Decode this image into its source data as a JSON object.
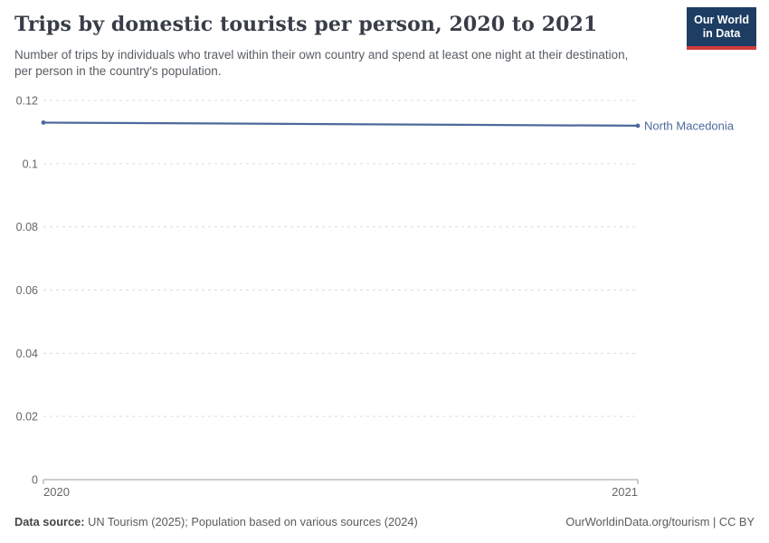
{
  "header": {
    "title": "Trips by domestic tourists per person, 2020 to 2021",
    "subtitle": "Number of trips by individuals who travel within their own country and spend at least one night at their destination, per person in the country's population.",
    "logo": {
      "line1": "Our World",
      "line2": "in Data",
      "bg_color": "#1d3d63",
      "accent_color": "#d13c3c"
    }
  },
  "chart_data": {
    "type": "line",
    "title": "Trips by domestic tourists per person, 2020 to 2021",
    "x": [
      2020,
      2021
    ],
    "xtick_labels": [
      "2020",
      "2021"
    ],
    "series": [
      {
        "name": "North Macedonia",
        "values": [
          0.113,
          0.112
        ],
        "color": "#4c6a9c"
      }
    ],
    "ylim": [
      0,
      0.12
    ],
    "yticks": [
      0,
      0.02,
      0.04,
      0.06,
      0.08,
      0.1,
      0.12
    ],
    "ytick_labels": [
      "0",
      "0.02",
      "0.04",
      "0.06",
      "0.08",
      "0.1",
      "0.12"
    ],
    "grid": "horizontal-dashed",
    "grid_color": "#dcdcdc",
    "axis_color": "#9e9e9e",
    "tick_text_color": "#666666",
    "legend_position": "end-of-line-label"
  },
  "footer": {
    "source_label": "Data source:",
    "source_text": " UN Tourism (2025); Population based on various sources (2024)",
    "rights": "OurWorldinData.org/tourism | CC BY"
  }
}
